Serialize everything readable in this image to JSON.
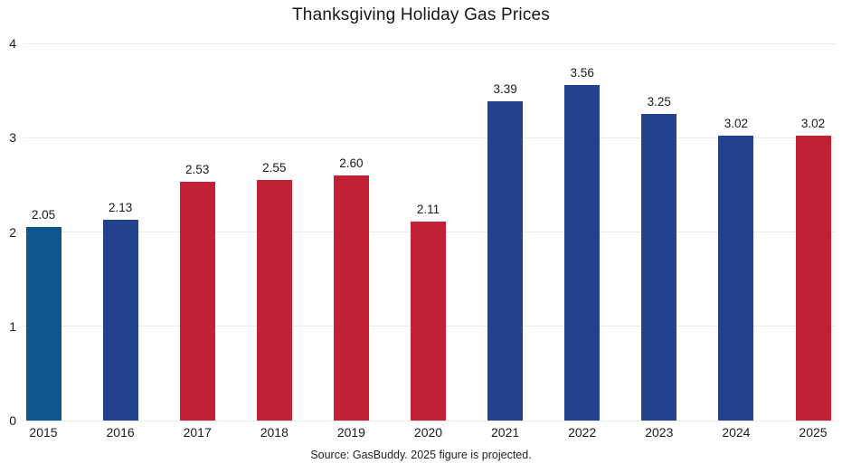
{
  "chart_data": {
    "type": "bar",
    "title": "Thanksgiving Holiday Gas Prices",
    "source_note": "Source: GasBuddy. 2025 figure is projected.",
    "categories": [
      "2015",
      "2016",
      "2017",
      "2018",
      "2019",
      "2020",
      "2021",
      "2022",
      "2023",
      "2024",
      "2025"
    ],
    "values": [
      2.05,
      2.13,
      2.53,
      2.55,
      2.6,
      2.11,
      3.39,
      3.56,
      3.25,
      3.02,
      3.02
    ],
    "value_labels": [
      "2.05",
      "2.13",
      "2.53",
      "2.55",
      "2.60",
      "2.11",
      "3.39",
      "3.56",
      "3.25",
      "3.02",
      "3.02"
    ],
    "bar_colors": [
      "#0E568F",
      "#24418E",
      "#C22135",
      "#C22135",
      "#C22135",
      "#C22135",
      "#24418E",
      "#24418E",
      "#24418E",
      "#24418E",
      "#C22135"
    ],
    "xlabel": "",
    "ylabel": "",
    "ylim": [
      0,
      4
    ],
    "yticks": [
      0,
      1,
      2,
      3,
      4
    ],
    "ytick_labels": [
      "0",
      "1",
      "2",
      "3",
      "4"
    ],
    "grid": "horizontal",
    "legend": "none",
    "colors": {
      "royal_blue": "#24418E",
      "dark_ocean_blue": "#0E568F",
      "crimson_red": "#C22135",
      "gridline": "#EBEBEB",
      "text": "#1A1A1A",
      "background": "#FFFFFF"
    }
  }
}
